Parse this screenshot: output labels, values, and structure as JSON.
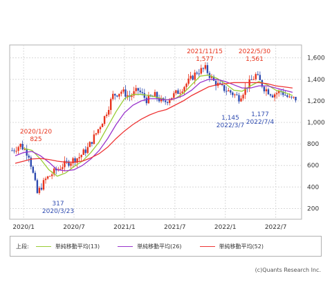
{
  "chart_data": {
    "type": "candlestick",
    "y_ticks": [
      "1,600",
      "1,400",
      "1,200",
      "1,000",
      "800",
      "600",
      "400",
      "200"
    ],
    "y_tick_values": [
      1600,
      1400,
      1200,
      1000,
      800,
      600,
      400,
      200
    ],
    "ylim": [
      100,
      1720
    ],
    "x_ticks": [
      "2020/1",
      "2020/7",
      "2021/1",
      "2021/7",
      "2022/1",
      "2022/7"
    ],
    "annotations": [
      {
        "date": "2020/1/20",
        "value": "825",
        "kind": "high"
      },
      {
        "date": "2020/3/23",
        "value": "317",
        "kind": "low"
      },
      {
        "date": "2021/11/15",
        "value": "1,577",
        "kind": "high"
      },
      {
        "date": "2022/5/30",
        "value": "1,561",
        "kind": "high"
      },
      {
        "date": "2022/3/7",
        "value": "1,145",
        "kind": "low"
      },
      {
        "date": "2022/7/4",
        "value": "1,177",
        "kind": "low"
      }
    ],
    "series": [
      {
        "name": "単純移動平均(13)",
        "color": "#99cc33"
      },
      {
        "name": "単純移動平均(26)",
        "color": "#9933cc"
      },
      {
        "name": "単純移動平均(52)",
        "color": "#ee3333"
      }
    ],
    "approx_close": [
      [
        "2019/12",
        740
      ],
      [
        "2020/1",
        790
      ],
      [
        "2020/2",
        700
      ],
      [
        "2020/3",
        340
      ],
      [
        "2020/4",
        470
      ],
      [
        "2020/5",
        540
      ],
      [
        "2020/6",
        600
      ],
      [
        "2020/7",
        640
      ],
      [
        "2020/8",
        680
      ],
      [
        "2020/9",
        760
      ],
      [
        "2020/10",
        900
      ],
      [
        "2020/11",
        1050
      ],
      [
        "2020/12",
        1250
      ],
      [
        "2021/1",
        1290
      ],
      [
        "2021/2",
        1240
      ],
      [
        "2021/3",
        1300
      ],
      [
        "2021/4",
        1210
      ],
      [
        "2021/5",
        1250
      ],
      [
        "2021/6",
        1180
      ],
      [
        "2021/7",
        1240
      ],
      [
        "2021/8",
        1300
      ],
      [
        "2021/9",
        1380
      ],
      [
        "2021/10",
        1470
      ],
      [
        "2021/11",
        1500
      ],
      [
        "2021/12",
        1380
      ],
      [
        "2022/1",
        1320
      ],
      [
        "2022/2",
        1280
      ],
      [
        "2022/3",
        1230
      ],
      [
        "2022/4",
        1340
      ],
      [
        "2022/5",
        1440
      ],
      [
        "2022/6",
        1320
      ],
      [
        "2022/7",
        1260
      ],
      [
        "2022/8",
        1290
      ],
      [
        "2022/9",
        1220
      ]
    ],
    "ma13": [
      [
        1,
        760
      ],
      [
        2,
        740
      ],
      [
        3,
        660
      ],
      [
        4,
        560
      ],
      [
        5,
        500
      ],
      [
        6,
        530
      ],
      [
        7,
        590
      ],
      [
        8,
        640
      ],
      [
        9,
        720
      ],
      [
        10,
        820
      ],
      [
        11,
        960
      ],
      [
        12,
        1100
      ],
      [
        13,
        1220
      ],
      [
        14,
        1260
      ],
      [
        15,
        1260
      ],
      [
        16,
        1250
      ],
      [
        17,
        1230
      ],
      [
        18,
        1210
      ],
      [
        19,
        1220
      ],
      [
        20,
        1270
      ],
      [
        21,
        1350
      ],
      [
        22,
        1430
      ],
      [
        23,
        1440
      ],
      [
        24,
        1410
      ],
      [
        25,
        1360
      ],
      [
        26,
        1300
      ],
      [
        27,
        1290
      ],
      [
        28,
        1340
      ],
      [
        29,
        1380
      ],
      [
        30,
        1350
      ],
      [
        31,
        1300
      ],
      [
        32,
        1280
      ],
      [
        33,
        1250
      ]
    ],
    "ma26": [
      [
        0,
        690
      ],
      [
        1,
        720
      ],
      [
        2,
        730
      ],
      [
        3,
        690
      ],
      [
        4,
        630
      ],
      [
        5,
        560
      ],
      [
        6,
        550
      ],
      [
        7,
        560
      ],
      [
        8,
        600
      ],
      [
        9,
        660
      ],
      [
        10,
        740
      ],
      [
        11,
        850
      ],
      [
        12,
        980
      ],
      [
        13,
        1090
      ],
      [
        14,
        1160
      ],
      [
        15,
        1200
      ],
      [
        16,
        1220
      ],
      [
        17,
        1220
      ],
      [
        18,
        1210
      ],
      [
        19,
        1220
      ],
      [
        20,
        1250
      ],
      [
        21,
        1300
      ],
      [
        22,
        1370
      ],
      [
        23,
        1400
      ],
      [
        24,
        1400
      ],
      [
        25,
        1380
      ],
      [
        26,
        1350
      ],
      [
        27,
        1320
      ],
      [
        28,
        1320
      ],
      [
        29,
        1340
      ],
      [
        30,
        1340
      ],
      [
        31,
        1320
      ],
      [
        32,
        1300
      ],
      [
        33,
        1280
      ]
    ],
    "ma52": [
      [
        0,
        620
      ],
      [
        1,
        640
      ],
      [
        2,
        660
      ],
      [
        3,
        665
      ],
      [
        4,
        655
      ],
      [
        5,
        640
      ],
      [
        6,
        630
      ],
      [
        7,
        630
      ],
      [
        8,
        640
      ],
      [
        9,
        670
      ],
      [
        10,
        710
      ],
      [
        11,
        770
      ],
      [
        12,
        850
      ],
      [
        13,
        920
      ],
      [
        14,
        980
      ],
      [
        15,
        1030
      ],
      [
        16,
        1070
      ],
      [
        17,
        1100
      ],
      [
        18,
        1120
      ],
      [
        19,
        1160
      ],
      [
        20,
        1200
      ],
      [
        21,
        1250
      ],
      [
        22,
        1290
      ],
      [
        23,
        1330
      ],
      [
        24,
        1350
      ],
      [
        25,
        1360
      ],
      [
        26,
        1370
      ],
      [
        27,
        1370
      ],
      [
        28,
        1370
      ],
      [
        29,
        1370
      ],
      [
        30,
        1360
      ],
      [
        31,
        1340
      ],
      [
        32,
        1330
      ],
      [
        33,
        1320
      ]
    ]
  },
  "legend": {
    "label": "上段:",
    "items": [
      "単純移動平均(13)",
      "単純移動平均(26)",
      "単純移動平均(52)"
    ]
  },
  "credit": "(c)Quants Research Inc."
}
